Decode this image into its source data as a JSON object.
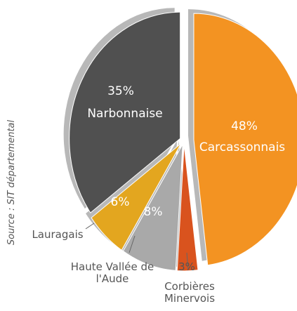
{
  "chart_data": {
    "type": "pie",
    "categories": [
      "Carcassonnais",
      "Corbières Minervois",
      "Haute Vallée de l'Aude",
      "Lauragais",
      "Narbonnaise"
    ],
    "values": [
      48,
      3,
      8,
      6,
      35
    ],
    "value_labels": [
      "48%",
      "3%",
      "8%",
      "6%",
      "35%"
    ],
    "colors": [
      "#f39322",
      "#d9531e",
      "#a9a9a9",
      "#e3a61f",
      "#505050"
    ],
    "source": "Source : SIT départemental"
  }
}
